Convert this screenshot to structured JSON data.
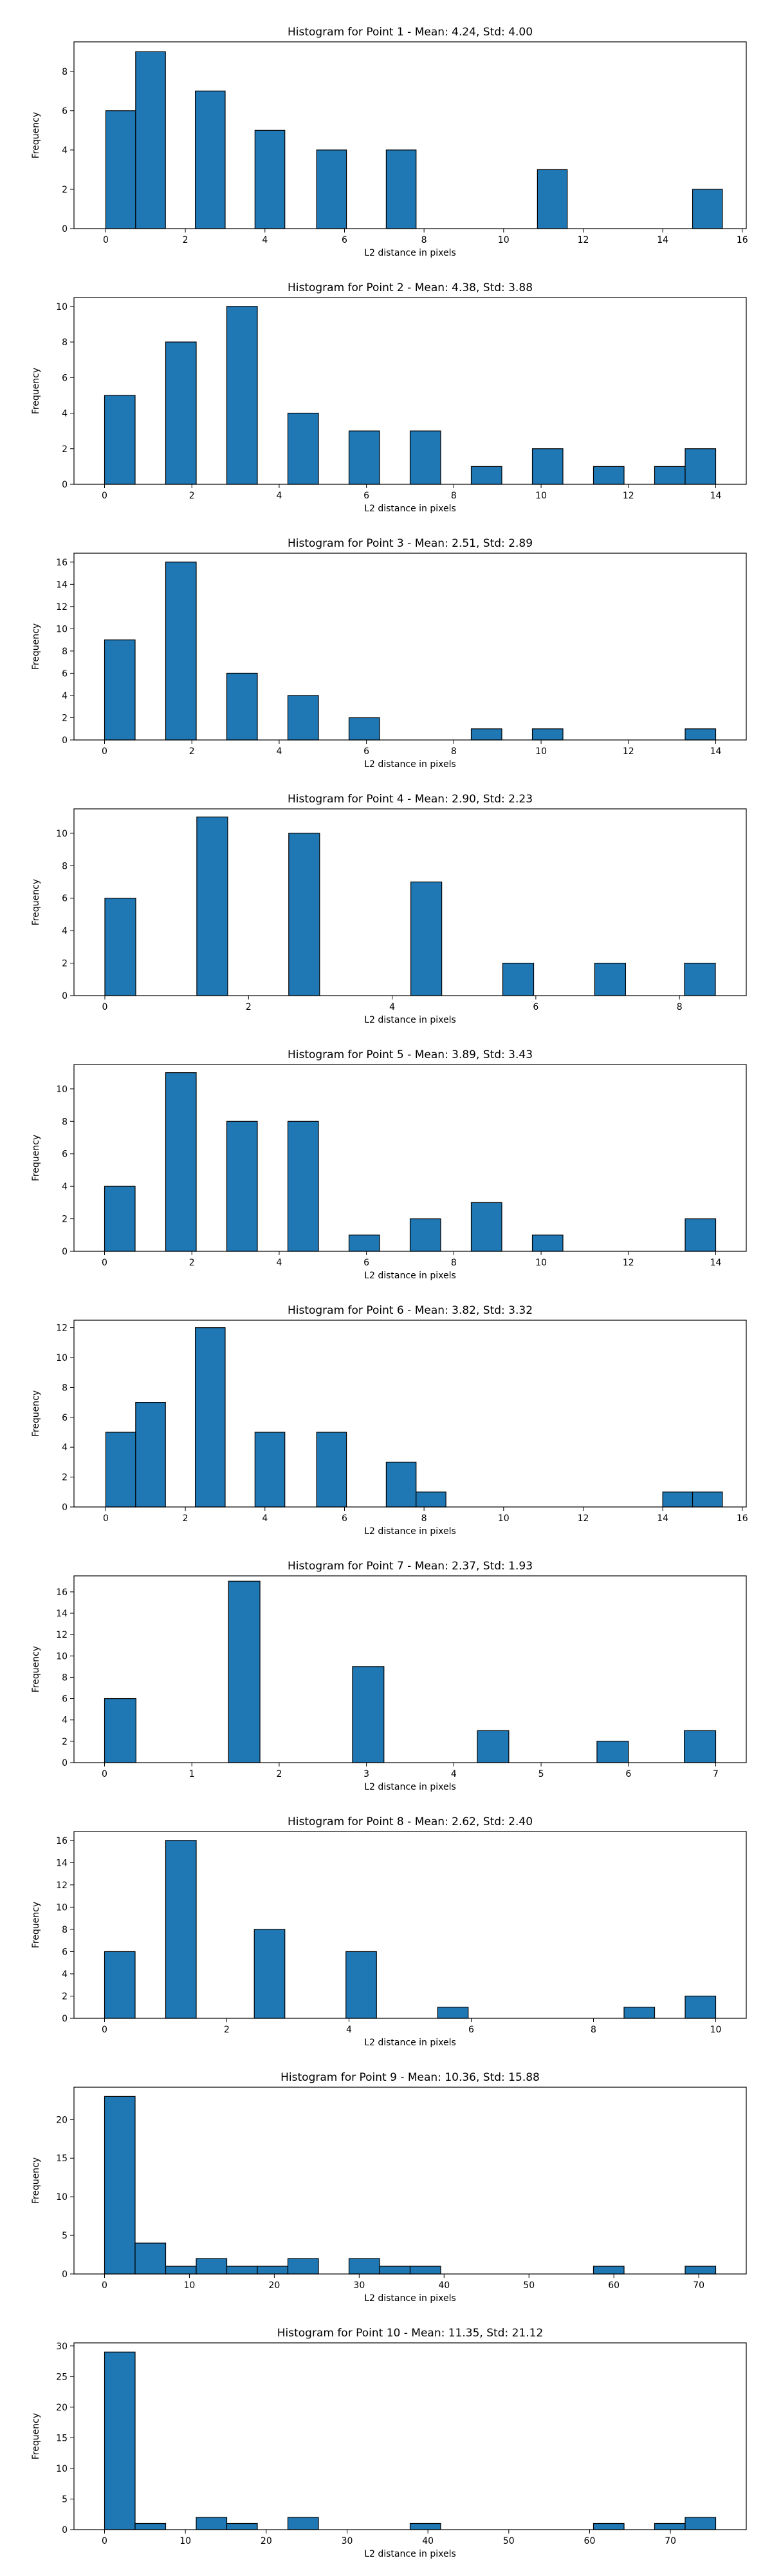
{
  "colors": {
    "bar_fill": "#1f77b4",
    "bar_edge": "#000000",
    "axis": "#000000",
    "background": "#ffffff"
  },
  "chart_data": [
    {
      "type": "bar",
      "title": "Histogram for Point 1 - Mean: 4.24, Std: 4.00",
      "xlabel": "L2 distance in pixels",
      "ylabel": "Frequency",
      "xlim": [
        -0.8,
        16.1
      ],
      "ylim": [
        0,
        9.5
      ],
      "xticks": [
        0,
        2,
        4,
        6,
        8,
        10,
        12,
        14,
        16
      ],
      "yticks": [
        0,
        2,
        4,
        6,
        8
      ],
      "bins": [
        {
          "x0": 0.0,
          "x1": 0.75,
          "value": 6
        },
        {
          "x0": 0.75,
          "x1": 1.5,
          "value": 9
        },
        {
          "x0": 2.25,
          "x1": 3.0,
          "value": 7
        },
        {
          "x0": 3.75,
          "x1": 4.5,
          "value": 5
        },
        {
          "x0": 5.3,
          "x1": 6.05,
          "value": 4
        },
        {
          "x0": 7.05,
          "x1": 7.8,
          "value": 4
        },
        {
          "x0": 10.85,
          "x1": 11.6,
          "value": 3
        },
        {
          "x0": 14.75,
          "x1": 15.5,
          "value": 2
        }
      ]
    },
    {
      "type": "bar",
      "title": "Histogram for Point 2 - Mean: 4.38, Std: 3.88",
      "xlabel": "L2 distance in pixels",
      "ylabel": "Frequency",
      "xlim": [
        -0.7,
        14.7
      ],
      "ylim": [
        0,
        10.5
      ],
      "xticks": [
        0,
        2,
        4,
        6,
        8,
        10,
        12,
        14
      ],
      "yticks": [
        0,
        2,
        4,
        6,
        8,
        10
      ],
      "bins": [
        {
          "x0": 0.0,
          "x1": 0.7,
          "value": 5
        },
        {
          "x0": 1.4,
          "x1": 2.1,
          "value": 8
        },
        {
          "x0": 2.8,
          "x1": 3.5,
          "value": 10
        },
        {
          "x0": 4.2,
          "x1": 4.9,
          "value": 4
        },
        {
          "x0": 5.6,
          "x1": 6.3,
          "value": 3
        },
        {
          "x0": 7.0,
          "x1": 7.7,
          "value": 3
        },
        {
          "x0": 8.4,
          "x1": 9.1,
          "value": 1
        },
        {
          "x0": 9.8,
          "x1": 10.5,
          "value": 2
        },
        {
          "x0": 11.2,
          "x1": 11.9,
          "value": 1
        },
        {
          "x0": 12.6,
          "x1": 13.3,
          "value": 1
        },
        {
          "x0": 13.3,
          "x1": 14.0,
          "value": 2
        }
      ]
    },
    {
      "type": "bar",
      "title": "Histogram for Point 3 - Mean: 2.51, Std: 2.89",
      "xlabel": "L2 distance in pixels",
      "ylabel": "Frequency",
      "xlim": [
        -0.7,
        14.7
      ],
      "ylim": [
        0,
        16.8
      ],
      "xticks": [
        0,
        2,
        4,
        6,
        8,
        10,
        12,
        14
      ],
      "yticks": [
        0,
        2,
        4,
        6,
        8,
        10,
        12,
        14,
        16
      ],
      "bins": [
        {
          "x0": 0.0,
          "x1": 0.7,
          "value": 9
        },
        {
          "x0": 1.4,
          "x1": 2.1,
          "value": 16
        },
        {
          "x0": 2.8,
          "x1": 3.5,
          "value": 6
        },
        {
          "x0": 4.2,
          "x1": 4.9,
          "value": 4
        },
        {
          "x0": 5.6,
          "x1": 6.3,
          "value": 2
        },
        {
          "x0": 8.4,
          "x1": 9.1,
          "value": 1
        },
        {
          "x0": 9.8,
          "x1": 10.5,
          "value": 1
        },
        {
          "x0": 13.3,
          "x1": 14.0,
          "value": 1
        }
      ]
    },
    {
      "type": "bar",
      "title": "Histogram for Point 4 - Mean: 2.90, Std: 2.23",
      "xlabel": "L2 distance in pixels",
      "ylabel": "Frequency",
      "xlim": [
        -0.43,
        8.93
      ],
      "ylim": [
        0,
        11.5
      ],
      "xticks": [
        0,
        2,
        4,
        6,
        8
      ],
      "yticks": [
        0,
        2,
        4,
        6,
        8,
        10
      ],
      "bins": [
        {
          "x0": 0.0,
          "x1": 0.43,
          "value": 6
        },
        {
          "x0": 1.28,
          "x1": 1.71,
          "value": 11
        },
        {
          "x0": 2.56,
          "x1": 2.99,
          "value": 10
        },
        {
          "x0": 4.26,
          "x1": 4.69,
          "value": 7
        },
        {
          "x0": 5.54,
          "x1": 5.97,
          "value": 2
        },
        {
          "x0": 6.82,
          "x1": 7.25,
          "value": 2
        },
        {
          "x0": 8.07,
          "x1": 8.5,
          "value": 2
        }
      ]
    },
    {
      "type": "bar",
      "title": "Histogram for Point 5 - Mean: 3.89, Std: 3.43",
      "xlabel": "L2 distance in pixels",
      "ylabel": "Frequency",
      "xlim": [
        -0.7,
        14.7
      ],
      "ylim": [
        0,
        11.5
      ],
      "xticks": [
        0,
        2,
        4,
        6,
        8,
        10,
        12,
        14
      ],
      "yticks": [
        0,
        2,
        4,
        6,
        8,
        10
      ],
      "bins": [
        {
          "x0": 0.0,
          "x1": 0.7,
          "value": 4
        },
        {
          "x0": 1.4,
          "x1": 2.1,
          "value": 11
        },
        {
          "x0": 2.8,
          "x1": 3.5,
          "value": 8
        },
        {
          "x0": 4.2,
          "x1": 4.9,
          "value": 8
        },
        {
          "x0": 5.6,
          "x1": 6.3,
          "value": 1
        },
        {
          "x0": 7.0,
          "x1": 7.7,
          "value": 2
        },
        {
          "x0": 8.4,
          "x1": 9.1,
          "value": 3
        },
        {
          "x0": 9.8,
          "x1": 10.5,
          "value": 1
        },
        {
          "x0": 13.3,
          "x1": 14.0,
          "value": 2
        }
      ]
    },
    {
      "type": "bar",
      "title": "Histogram for Point 6 - Mean: 3.82, Std: 3.32",
      "xlabel": "L2 distance in pixels",
      "ylabel": "Frequency",
      "xlim": [
        -0.8,
        16.1
      ],
      "ylim": [
        0,
        12.5
      ],
      "xticks": [
        0,
        2,
        4,
        6,
        8,
        10,
        12,
        14,
        16
      ],
      "yticks": [
        0,
        2,
        4,
        6,
        8,
        10,
        12
      ],
      "bins": [
        {
          "x0": 0.0,
          "x1": 0.75,
          "value": 5
        },
        {
          "x0": 0.75,
          "x1": 1.5,
          "value": 7
        },
        {
          "x0": 2.25,
          "x1": 3.0,
          "value": 12
        },
        {
          "x0": 3.75,
          "x1": 4.5,
          "value": 5
        },
        {
          "x0": 5.3,
          "x1": 6.05,
          "value": 5
        },
        {
          "x0": 7.05,
          "x1": 7.8,
          "value": 3
        },
        {
          "x0": 7.8,
          "x1": 8.55,
          "value": 1
        },
        {
          "x0": 14.0,
          "x1": 14.75,
          "value": 1
        },
        {
          "x0": 14.75,
          "x1": 15.5,
          "value": 1
        }
      ]
    },
    {
      "type": "bar",
      "title": "Histogram for Point 7 - Mean: 2.37, Std: 1.93",
      "xlabel": "L2 distance in pixels",
      "ylabel": "Frequency",
      "xlim": [
        -0.35,
        7.35
      ],
      "ylim": [
        0,
        17.5
      ],
      "xticks": [
        0,
        1,
        2,
        3,
        4,
        5,
        6,
        7
      ],
      "yticks": [
        0,
        2,
        4,
        6,
        8,
        10,
        12,
        14,
        16
      ],
      "bins": [
        {
          "x0": 0.0,
          "x1": 0.36,
          "value": 6
        },
        {
          "x0": 1.42,
          "x1": 1.78,
          "value": 17
        },
        {
          "x0": 2.84,
          "x1": 3.2,
          "value": 9
        },
        {
          "x0": 4.27,
          "x1": 4.63,
          "value": 3
        },
        {
          "x0": 5.64,
          "x1": 6.0,
          "value": 2
        },
        {
          "x0": 6.64,
          "x1": 7.0,
          "value": 3
        }
      ]
    },
    {
      "type": "bar",
      "title": "Histogram for Point 8 - Mean: 2.62, Std: 2.40",
      "xlabel": "L2 distance in pixels",
      "ylabel": "Frequency",
      "xlim": [
        -0.5,
        10.5
      ],
      "ylim": [
        0,
        16.8
      ],
      "xticks": [
        0,
        2,
        4,
        6,
        8,
        10
      ],
      "yticks": [
        0,
        2,
        4,
        6,
        8,
        10,
        12,
        14,
        16
      ],
      "bins": [
        {
          "x0": 0.0,
          "x1": 0.5,
          "value": 6
        },
        {
          "x0": 1.0,
          "x1": 1.5,
          "value": 16
        },
        {
          "x0": 2.45,
          "x1": 2.95,
          "value": 8
        },
        {
          "x0": 3.95,
          "x1": 4.45,
          "value": 6
        },
        {
          "x0": 5.45,
          "x1": 5.95,
          "value": 1
        },
        {
          "x0": 8.5,
          "x1": 9.0,
          "value": 1
        },
        {
          "x0": 9.5,
          "x1": 10.0,
          "value": 2
        }
      ]
    },
    {
      "type": "bar",
      "title": "Histogram for Point 9 - Mean: 10.36, Std: 15.88",
      "xlabel": "L2 distance in pixels",
      "ylabel": "Frequency",
      "xlim": [
        -3.6,
        75.6
      ],
      "ylim": [
        0,
        24.2
      ],
      "xticks": [
        0,
        10,
        20,
        30,
        40,
        50,
        60,
        70
      ],
      "yticks": [
        0,
        5,
        10,
        15,
        20
      ],
      "bins": [
        {
          "x0": 0.0,
          "x1": 3.6,
          "value": 23
        },
        {
          "x0": 3.6,
          "x1": 7.2,
          "value": 4
        },
        {
          "x0": 7.2,
          "x1": 10.8,
          "value": 1
        },
        {
          "x0": 10.8,
          "x1": 14.4,
          "value": 2
        },
        {
          "x0": 14.4,
          "x1": 18.0,
          "value": 1
        },
        {
          "x0": 18.0,
          "x1": 21.6,
          "value": 1
        },
        {
          "x0": 21.6,
          "x1": 25.2,
          "value": 2
        },
        {
          "x0": 28.8,
          "x1": 32.4,
          "value": 2
        },
        {
          "x0": 32.4,
          "x1": 36.0,
          "value": 1
        },
        {
          "x0": 36.0,
          "x1": 39.6,
          "value": 1
        },
        {
          "x0": 57.6,
          "x1": 61.2,
          "value": 1
        },
        {
          "x0": 68.4,
          "x1": 72.0,
          "value": 1
        }
      ]
    },
    {
      "type": "bar",
      "title": "Histogram for Point 10 - Mean: 11.35, Std: 21.12",
      "xlabel": "L2 distance in pixels",
      "ylabel": "Frequency",
      "xlim": [
        -3.78,
        79.38
      ],
      "ylim": [
        0,
        30.5
      ],
      "xticks": [
        0,
        10,
        20,
        30,
        40,
        50,
        60,
        70
      ],
      "yticks": [
        0,
        5,
        10,
        15,
        20,
        25,
        30
      ],
      "bins": [
        {
          "x0": 0.0,
          "x1": 3.78,
          "value": 29
        },
        {
          "x0": 3.78,
          "x1": 7.56,
          "value": 1
        },
        {
          "x0": 11.34,
          "x1": 15.12,
          "value": 2
        },
        {
          "x0": 15.12,
          "x1": 18.9,
          "value": 1
        },
        {
          "x0": 22.68,
          "x1": 26.46,
          "value": 2
        },
        {
          "x0": 37.8,
          "x1": 41.58,
          "value": 1
        },
        {
          "x0": 60.48,
          "x1": 64.26,
          "value": 1
        },
        {
          "x0": 68.04,
          "x1": 71.82,
          "value": 1
        },
        {
          "x0": 71.82,
          "x1": 75.6,
          "value": 2
        }
      ]
    }
  ]
}
